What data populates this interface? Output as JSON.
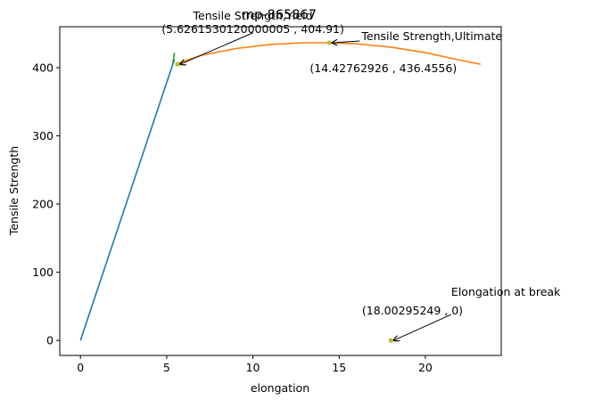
{
  "chart_data": {
    "type": "line",
    "title": "mp-865867",
    "xlabel": "elongation",
    "ylabel": "Tensile Strength",
    "xlim": [
      -1.2,
      24.4
    ],
    "ylim": [
      -22,
      460
    ],
    "xticks": [
      0,
      5,
      10,
      15,
      20
    ],
    "yticks": [
      0,
      100,
      200,
      300,
      400
    ],
    "grid": false,
    "series": [
      {
        "color": "#1f77b4",
        "points": [
          [
            0,
            0
          ],
          [
            5.45,
            412
          ]
        ]
      },
      {
        "color": "#2ca02c",
        "points": [
          [
            5.35,
            404
          ],
          [
            5.45,
            422
          ]
        ]
      },
      {
        "color": "#ff7f0e",
        "points": [
          [
            5.5,
            405
          ],
          [
            7,
            418
          ],
          [
            9,
            428
          ],
          [
            11,
            434
          ],
          [
            13,
            436.5
          ],
          [
            14.43,
            436.5
          ],
          [
            16,
            435
          ],
          [
            18,
            430
          ],
          [
            20,
            422
          ],
          [
            22,
            411
          ],
          [
            23.2,
            405
          ]
        ]
      }
    ],
    "markers": [
      {
        "color": "#bcbd22",
        "x": 5.6261530120000005,
        "y": 404.91
      },
      {
        "color": "#bcbd22",
        "x": 14.42762926,
        "y": 436.4556
      },
      {
        "color": "#bcbd22",
        "x": 18.00295249,
        "y": 0
      }
    ],
    "annotations": [
      {
        "label": "Tensile Strength,Yield",
        "value_text": "(5.6261530120000005 , 404.91)",
        "target": [
          5.6261530120000005,
          404.91
        ],
        "text_at": [
          10,
          451
        ]
      },
      {
        "label": "Tensile Strength,Ultimate",
        "value_text": "(14.42762926 , 436.4556)",
        "target": [
          14.42762926,
          436.4556
        ],
        "text_at": [
          16.3,
          436.5
        ]
      },
      {
        "label": "Elongation at break",
        "value_text": "(18.00295249 , 0)",
        "target": [
          18.00295249,
          0
        ],
        "text_at": [
          21.5,
          38
        ]
      }
    ]
  }
}
